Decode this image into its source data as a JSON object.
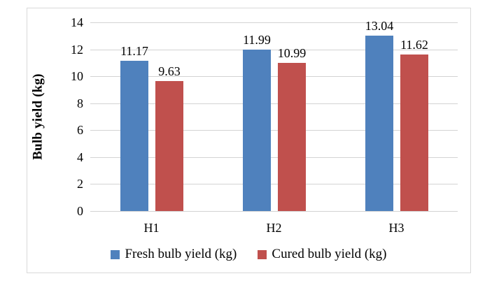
{
  "chart_data": {
    "type": "bar",
    "title": "",
    "xlabel": "",
    "ylabel": "Bulb yield (kg)",
    "categories": [
      "H1",
      "H2",
      "H3"
    ],
    "series": [
      {
        "key": "fresh",
        "name": "Fresh bulb yield (kg)",
        "color": "#4F81BD",
        "values": [
          11.17,
          11.99,
          13.04
        ]
      },
      {
        "key": "cured",
        "name": "Cured bulb yield (kg)",
        "color": "#C0504D",
        "values": [
          9.63,
          10.99,
          11.62
        ]
      }
    ],
    "data_labels": [
      [
        "11.17",
        "11.99",
        "13.04"
      ],
      [
        "9.63",
        "10.99",
        "11.62"
      ]
    ],
    "ylim": [
      0,
      14
    ],
    "yticks": [
      0,
      2,
      4,
      6,
      8,
      10,
      12,
      14
    ],
    "grid": true,
    "legend_position": "bottom"
  },
  "colors": {
    "frame_border": "#d9d9d9",
    "gridline": "#d3d3d3",
    "background": "#ffffff",
    "text": "#000000"
  }
}
